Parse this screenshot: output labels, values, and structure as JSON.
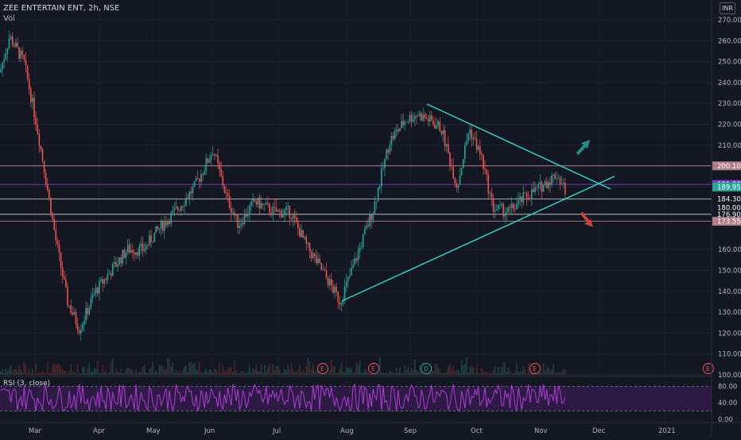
{
  "header": {
    "symbol_line": "ZEE ENTERTAIN ENT, 2h, NSE",
    "volume_label": "Vol",
    "currency": "INR"
  },
  "price_axis": {
    "ticks": [
      "270.00",
      "260.00",
      "250.00",
      "240.00",
      "230.00",
      "220.00",
      "210.00",
      "190.00",
      "160.00",
      "150.00",
      "140.00",
      "130.00",
      "120.00",
      "110.00",
      "100.00"
    ]
  },
  "price_badges": [
    {
      "label": "200.10",
      "value": 200.1,
      "bg": "#b07f8a",
      "line": "#c890a0"
    },
    {
      "label": "191.20",
      "value": 191.2,
      "bg": "#7c3fbf",
      "line": "#7c3fbf"
    },
    {
      "label": "189.95",
      "value": 189.95,
      "bg": "#26a69a",
      "line": null
    },
    {
      "label": "184.30",
      "value": 184.3,
      "bg": null,
      "line": "#d1d4dc"
    },
    {
      "label": "180.00",
      "value": 180.0,
      "bg": null,
      "line": null
    },
    {
      "label": "176.90",
      "value": 176.9,
      "bg": null,
      "line": "#d1d4dc"
    },
    {
      "label": "173.55",
      "value": 173.55,
      "bg": "#b07f8a",
      "line": "#c890a0"
    }
  ],
  "time_axis": {
    "labels": [
      "Mar",
      "Apr",
      "May",
      "Jun",
      "Jul",
      "Aug",
      "Sep",
      "Oct",
      "Nov",
      "Dec",
      "2021"
    ]
  },
  "event_markers": [
    {
      "label": "E",
      "kind": "earnings"
    },
    {
      "label": "E",
      "kind": "earnings"
    },
    {
      "label": "D",
      "kind": "dividend"
    },
    {
      "label": "E",
      "kind": "earnings"
    },
    {
      "label": "E",
      "kind": "earnings"
    }
  ],
  "rsi": {
    "legend": "RSI (3, close)",
    "ticks": [
      "80.00",
      "40.00",
      "0.00"
    ],
    "upper": 80,
    "lower": 20
  },
  "colors": {
    "background": "#131722",
    "up": "#26a69a",
    "down": "#ef5350",
    "trendline": "#2ed3c1",
    "rsi_line": "#b03cd6",
    "rsi_band": "#2d1a45"
  },
  "icons": [
    "arrow-up-icon",
    "arrow-down-icon"
  ]
}
